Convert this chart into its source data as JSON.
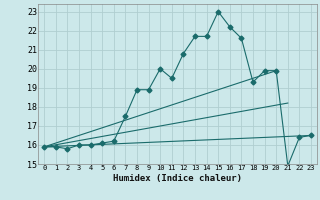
{
  "title": "",
  "xlabel": "Humidex (Indice chaleur)",
  "bg_color": "#cce8ea",
  "grid_color": "#b0ced0",
  "line_color": "#1a6b6b",
  "xlim": [
    -0.5,
    23.5
  ],
  "ylim": [
    15,
    23.4
  ],
  "xticks": [
    0,
    1,
    2,
    3,
    4,
    5,
    6,
    7,
    8,
    9,
    10,
    11,
    12,
    13,
    14,
    15,
    16,
    17,
    18,
    19,
    20,
    21,
    22,
    23
  ],
  "yticks": [
    15,
    16,
    17,
    18,
    19,
    20,
    21,
    22,
    23
  ],
  "series1_x": [
    0,
    1,
    2,
    3,
    4,
    5,
    6,
    7,
    8,
    9,
    10,
    11,
    12,
    13,
    14,
    15,
    16,
    17,
    18,
    19,
    20,
    21,
    22,
    23
  ],
  "series1_y": [
    15.9,
    15.9,
    15.8,
    16.0,
    16.0,
    16.1,
    16.2,
    17.5,
    18.9,
    18.9,
    20.0,
    19.5,
    20.8,
    21.7,
    21.7,
    23.0,
    22.2,
    21.6,
    19.3,
    19.9,
    19.9,
    14.9,
    16.4,
    16.5
  ],
  "line2_x": [
    0,
    20
  ],
  "line2_y": [
    15.9,
    19.9
  ],
  "line3_x": [
    0,
    21
  ],
  "line3_y": [
    15.9,
    18.2
  ],
  "line4_x": [
    0,
    23
  ],
  "line4_y": [
    15.9,
    16.5
  ]
}
